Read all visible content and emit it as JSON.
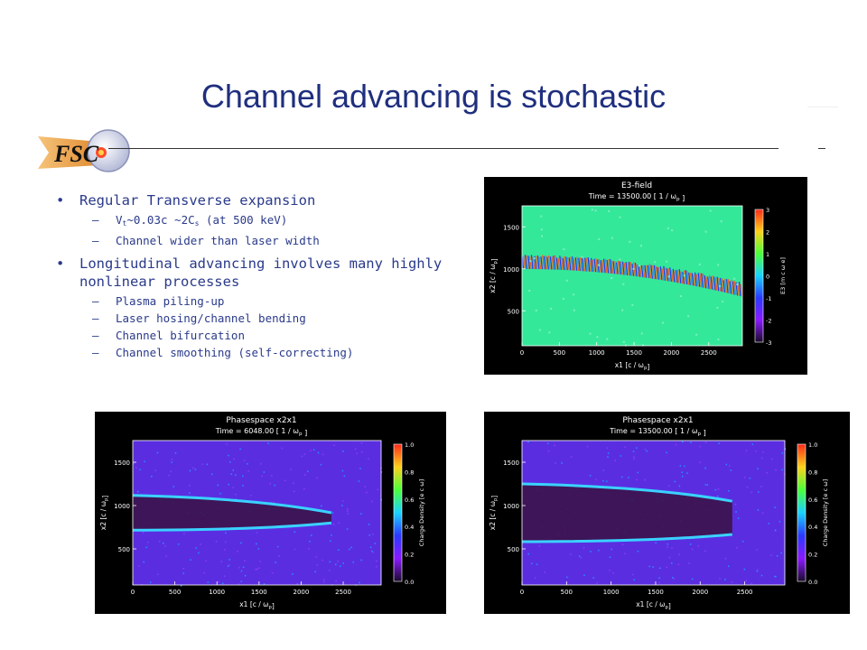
{
  "slide": {
    "title": "Channel advancing is stochastic",
    "logo_text": "FSC",
    "small_text": "...................................."
  },
  "bullets": [
    {
      "text": "Regular Transverse expansion",
      "subs": [
        {
          "pre": "V",
          "sub": "t",
          "mid": "~0.03c ~2C",
          "sub2": "s",
          "post": " (at 500 keV)"
        },
        {
          "pre": "Channel wider than laser width"
        }
      ]
    },
    {
      "text": "Longitudinal advancing involves many highly nonlinear processes",
      "subs": [
        {
          "pre": "Plasma piling-up"
        },
        {
          "pre": "Laser hosing/channel bending"
        },
        {
          "pre": "Channel bifurcation"
        },
        {
          "pre": "Channel smoothing (self-correcting)"
        }
      ]
    }
  ],
  "plots": [
    {
      "id": "e3",
      "title": "E3-field",
      "time": "Time = 13500.00 [ 1 / ω",
      "time_sub": "p",
      "time_end": " ]",
      "xlabel": "x1 [c / ω",
      "xlabel_sub": "p",
      "xlabel_end": "]",
      "ylabel": "x2 [c / ω",
      "ylabel_sub": "p",
      "ylabel_end": "]",
      "cbar_label": "E3 [m",
      "cbar_label_2": " c ω",
      "cbar_label_3": " e",
      "cbar_label_4": "]",
      "xticks": [
        "0",
        "500",
        "1000",
        "1500",
        "2000",
        "2500"
      ],
      "yticks": [
        "1500",
        "1000",
        "500"
      ],
      "cticks": [
        "3",
        "2",
        "1",
        "0",
        "-1",
        "-2",
        "-3"
      ],
      "bg": "#34e89a"
    },
    {
      "id": "ps1",
      "title": "Phasespace x2x1",
      "time": "Time = 6048.00 [ 1 / ω",
      "time_sub": "p",
      "time_end": " ]",
      "xlabel": "x1 [c / ω",
      "xlabel_sub": "p",
      "xlabel_end": "]",
      "ylabel": "x2 [c / ω",
      "ylabel_sub": "p",
      "ylabel_end": "]",
      "cbar_label": "Charge Density [e c",
      "cbar_label_2": " ω",
      "cbar_label_3": "",
      "cbar_label_4": "]",
      "xticks": [
        "0",
        "500",
        "1000",
        "1500",
        "2000",
        "2500"
      ],
      "yticks": [
        "1500",
        "1000",
        "500"
      ],
      "cticks": [
        "1.0",
        "0.8",
        "0.6",
        "0.4",
        "0.2",
        "0.0"
      ],
      "bg": "#5a2ee0"
    },
    {
      "id": "ps2",
      "title": "Phasespace x2x1",
      "time": "Time = 13500.00 [ 1 / ω",
      "time_sub": "p",
      "time_end": " ]",
      "xlabel": "x1 [c / ω",
      "xlabel_sub": "p",
      "xlabel_end": "]",
      "ylabel": "x2 [c / ω",
      "ylabel_sub": "p",
      "ylabel_end": "]",
      "cbar_label": "Charge Density [e c",
      "cbar_label_2": " ω",
      "cbar_label_3": "",
      "cbar_label_4": "]",
      "xticks": [
        "0",
        "500",
        "1000",
        "1500",
        "2000",
        "2500"
      ],
      "yticks": [
        "1500",
        "1000",
        "500"
      ],
      "cticks": [
        "1.0",
        "0.8",
        "0.6",
        "0.4",
        "0.2",
        "0.0"
      ],
      "bg": "#5a2ee0"
    }
  ]
}
